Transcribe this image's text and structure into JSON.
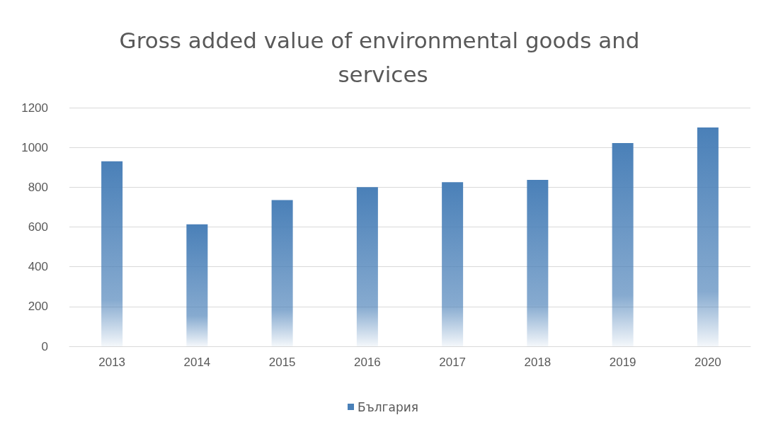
{
  "chart_data": {
    "type": "bar",
    "title": "Gross added value of environmental goods and services",
    "categories": [
      "2013",
      "2014",
      "2015",
      "2016",
      "2017",
      "2018",
      "2019",
      "2020"
    ],
    "series": [
      {
        "name": "България",
        "color": "#4a80b8",
        "values": [
          930,
          613,
          735,
          800,
          825,
          837,
          1022,
          1100
        ]
      }
    ],
    "ylim": [
      0,
      1200
    ],
    "yticks": [
      0,
      200,
      400,
      600,
      800,
      1000,
      1200
    ],
    "grid": "y",
    "legend": "bottom"
  }
}
